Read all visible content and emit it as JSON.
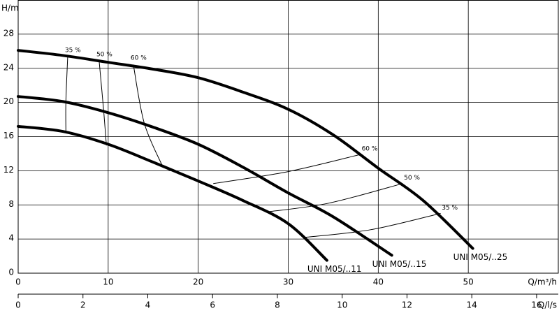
{
  "chart_data": {
    "type": "line",
    "y_label": "H/m",
    "x_label": "Q/m³/h",
    "x2_label": "Q/l/s",
    "xlim": [
      0,
      60
    ],
    "xticks": [
      0,
      10,
      20,
      30,
      40,
      50
    ],
    "ylim": [
      0,
      32
    ],
    "yticks": [
      0,
      4,
      8,
      12,
      16,
      20,
      24,
      28
    ],
    "x2lim": [
      0,
      16.67
    ],
    "x2ticks": [
      0,
      2,
      4,
      6,
      8,
      10,
      12,
      14,
      16
    ],
    "grid": true,
    "series": [
      {
        "name": "UNI M05/..11",
        "color": "#000000",
        "x": [
          0,
          5,
          10,
          15,
          20,
          25,
          30,
          34.3
        ],
        "values": [
          17.2,
          16.6,
          15.1,
          13.0,
          10.8,
          8.5,
          5.8,
          1.5
        ]
      },
      {
        "name": "UNI M05/..15",
        "color": "#000000",
        "x": [
          0,
          5,
          10,
          15,
          20,
          25,
          30,
          35,
          41.5
        ],
        "values": [
          20.7,
          20.1,
          18.8,
          17.1,
          15.1,
          12.4,
          9.4,
          6.6,
          2.1
        ]
      },
      {
        "name": "UNI M05/..25",
        "color": "#000000",
        "x": [
          0,
          5,
          10,
          15,
          20,
          25,
          30,
          35,
          40,
          45,
          50.5
        ],
        "values": [
          26.1,
          25.5,
          24.7,
          23.9,
          22.9,
          21.2,
          19.2,
          16.2,
          12.3,
          8.5,
          2.9
        ]
      }
    ],
    "efficiency": [
      {
        "label": "35 %",
        "left": {
          "x": [
            5.5,
            5.3,
            5.3
          ],
          "values": [
            25.3,
            20.1,
            16.6
          ]
        },
        "right": {
          "x": [
            31.9,
            39.2,
            46.9
          ],
          "values": [
            4.2,
            5.1,
            7.0
          ]
        }
      },
      {
        "label": "50 %",
        "left": {
          "x": [
            9.0,
            9.5,
            9.8
          ],
          "values": [
            24.8,
            19.0,
            15.0
          ]
        },
        "right": {
          "x": [
            27.8,
            34.5,
            42.7
          ],
          "values": [
            7.2,
            8.2,
            10.5
          ]
        }
      },
      {
        "label": "60 %",
        "left": {
          "x": [
            12.8,
            14.0,
            16.0
          ],
          "values": [
            24.4,
            17.6,
            12.6
          ]
        },
        "right": {
          "x": [
            21.7,
            30,
            38
          ],
          "values": [
            10.5,
            11.9,
            13.9
          ]
        }
      }
    ]
  }
}
